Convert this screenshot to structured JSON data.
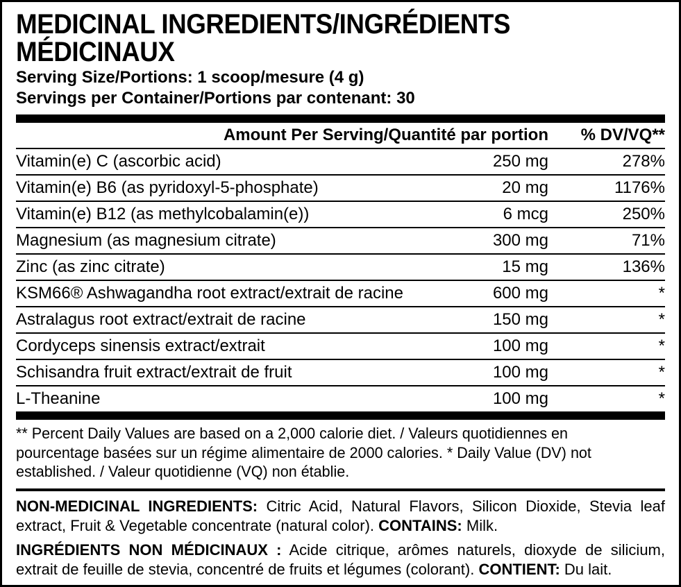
{
  "title": "MEDICINAL INGREDIENTS/INGRÉDIENTS MÉDICINAUX",
  "serving_size": "Serving Size/Portions: 1 scoop/mesure (4 g)",
  "servings_per_container": "Servings per Container/Portions par contenant: 30",
  "header_amount": "Amount Per Serving/Quantité par portion",
  "header_dv": "% DV/VQ**",
  "rows": [
    {
      "name": "Vitamin(e) C (ascorbic acid)",
      "amount": "250 mg",
      "dv": "278%"
    },
    {
      "name": "Vitamin(e) B6 (as pyridoxyl-5-phosphate)",
      "amount": "20 mg",
      "dv": "1176%"
    },
    {
      "name": "Vitamin(e) B12 (as methylcobalamin(e))",
      "amount": "6 mcg",
      "dv": "250%"
    },
    {
      "name": "Magnesium (as magnesium citrate)",
      "amount": "300 mg",
      "dv": "71%"
    },
    {
      "name": "Zinc (as zinc citrate)",
      "amount": "15 mg",
      "dv": "136%"
    },
    {
      "name": "KSM66® Ashwagandha root extract/extrait de racine",
      "amount": "600 mg",
      "dv": "*"
    },
    {
      "name": "Astralagus root extract/extrait de racine",
      "amount": "150 mg",
      "dv": "*"
    },
    {
      "name": "Cordyceps sinensis extract/extrait",
      "amount": "100 mg",
      "dv": "*"
    },
    {
      "name": "Schisandra fruit extract/extrait de fruit",
      "amount": "100 mg",
      "dv": "*"
    },
    {
      "name": "L-Theanine",
      "amount": "100 mg",
      "dv": "*"
    }
  ],
  "footnote": "** Percent Daily Values are based on a 2,000 calorie diet. / Valeurs quotidiennes en pourcentage basées sur un régime alimentaire de 2000 calories. * Daily Value (DV) not established. / Valeur quotidienne (VQ) non établie.",
  "nonmed_en_lead": "NON-MEDICINAL INGREDIENTS:",
  "nonmed_en_body": " Citric Acid, Natural Flavors, Silicon Dioxide, Stevia leaf extract, Fruit & Vegetable concentrate (natural color). ",
  "contains_en_lead": "CONTAINS:",
  "contains_en_body": " Milk.",
  "nonmed_fr_lead": "INGRÉDIENTS NON MÉDICINAUX :",
  "nonmed_fr_body": " Acide citrique, arômes naturels, dioxyde de silicium, extrait de feuille de stevia, concentré de fruits et légumes (colorant). ",
  "contains_fr_lead": "CONTIENT:",
  "contains_fr_body": " Du lait."
}
